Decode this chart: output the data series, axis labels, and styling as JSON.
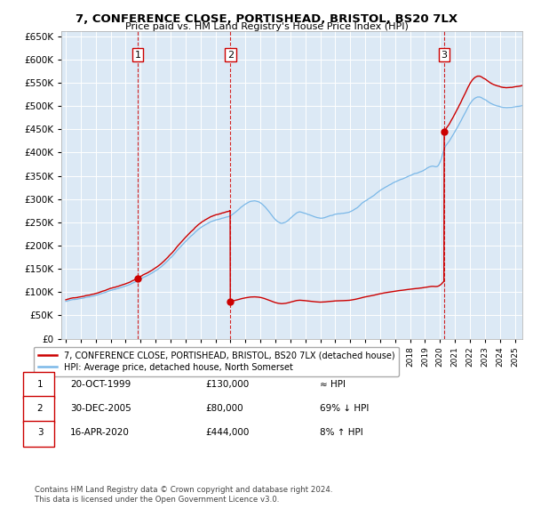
{
  "title": "7, CONFERENCE CLOSE, PORTISHEAD, BRISTOL, BS20 7LX",
  "subtitle": "Price paid vs. HM Land Registry's House Price Index (HPI)",
  "ylim": [
    0,
    660000
  ],
  "yticks": [
    0,
    50000,
    100000,
    150000,
    200000,
    250000,
    300000,
    350000,
    400000,
    450000,
    500000,
    550000,
    600000,
    650000
  ],
  "xlim_start": 1994.7,
  "xlim_end": 2025.5,
  "plot_bg": "#dce9f5",
  "sale_color": "#cc0000",
  "hpi_color": "#7ab8e8",
  "vline_color": "#cc0000",
  "legend_label_sale": "7, CONFERENCE CLOSE, PORTISHEAD, BRISTOL, BS20 7LX (detached house)",
  "legend_label_hpi": "HPI: Average price, detached house, North Somerset",
  "sale1_x": 1999.8,
  "sale1_y": 130000,
  "sale2_x": 2005.99,
  "sale2_y": 80000,
  "sale3_x": 2020.28,
  "sale3_y": 444000,
  "transactions": [
    {
      "num": 1,
      "date": "20-OCT-1999",
      "price": "£130,000",
      "label": "≈ HPI"
    },
    {
      "num": 2,
      "date": "30-DEC-2005",
      "price": "£80,000",
      "label": "69% ↓ HPI"
    },
    {
      "num": 3,
      "date": "16-APR-2020",
      "price": "£444,000",
      "label": "8% ↑ HPI"
    }
  ],
  "footnote1": "Contains HM Land Registry data © Crown copyright and database right 2024.",
  "footnote2": "This data is licensed under the Open Government Licence v3.0."
}
